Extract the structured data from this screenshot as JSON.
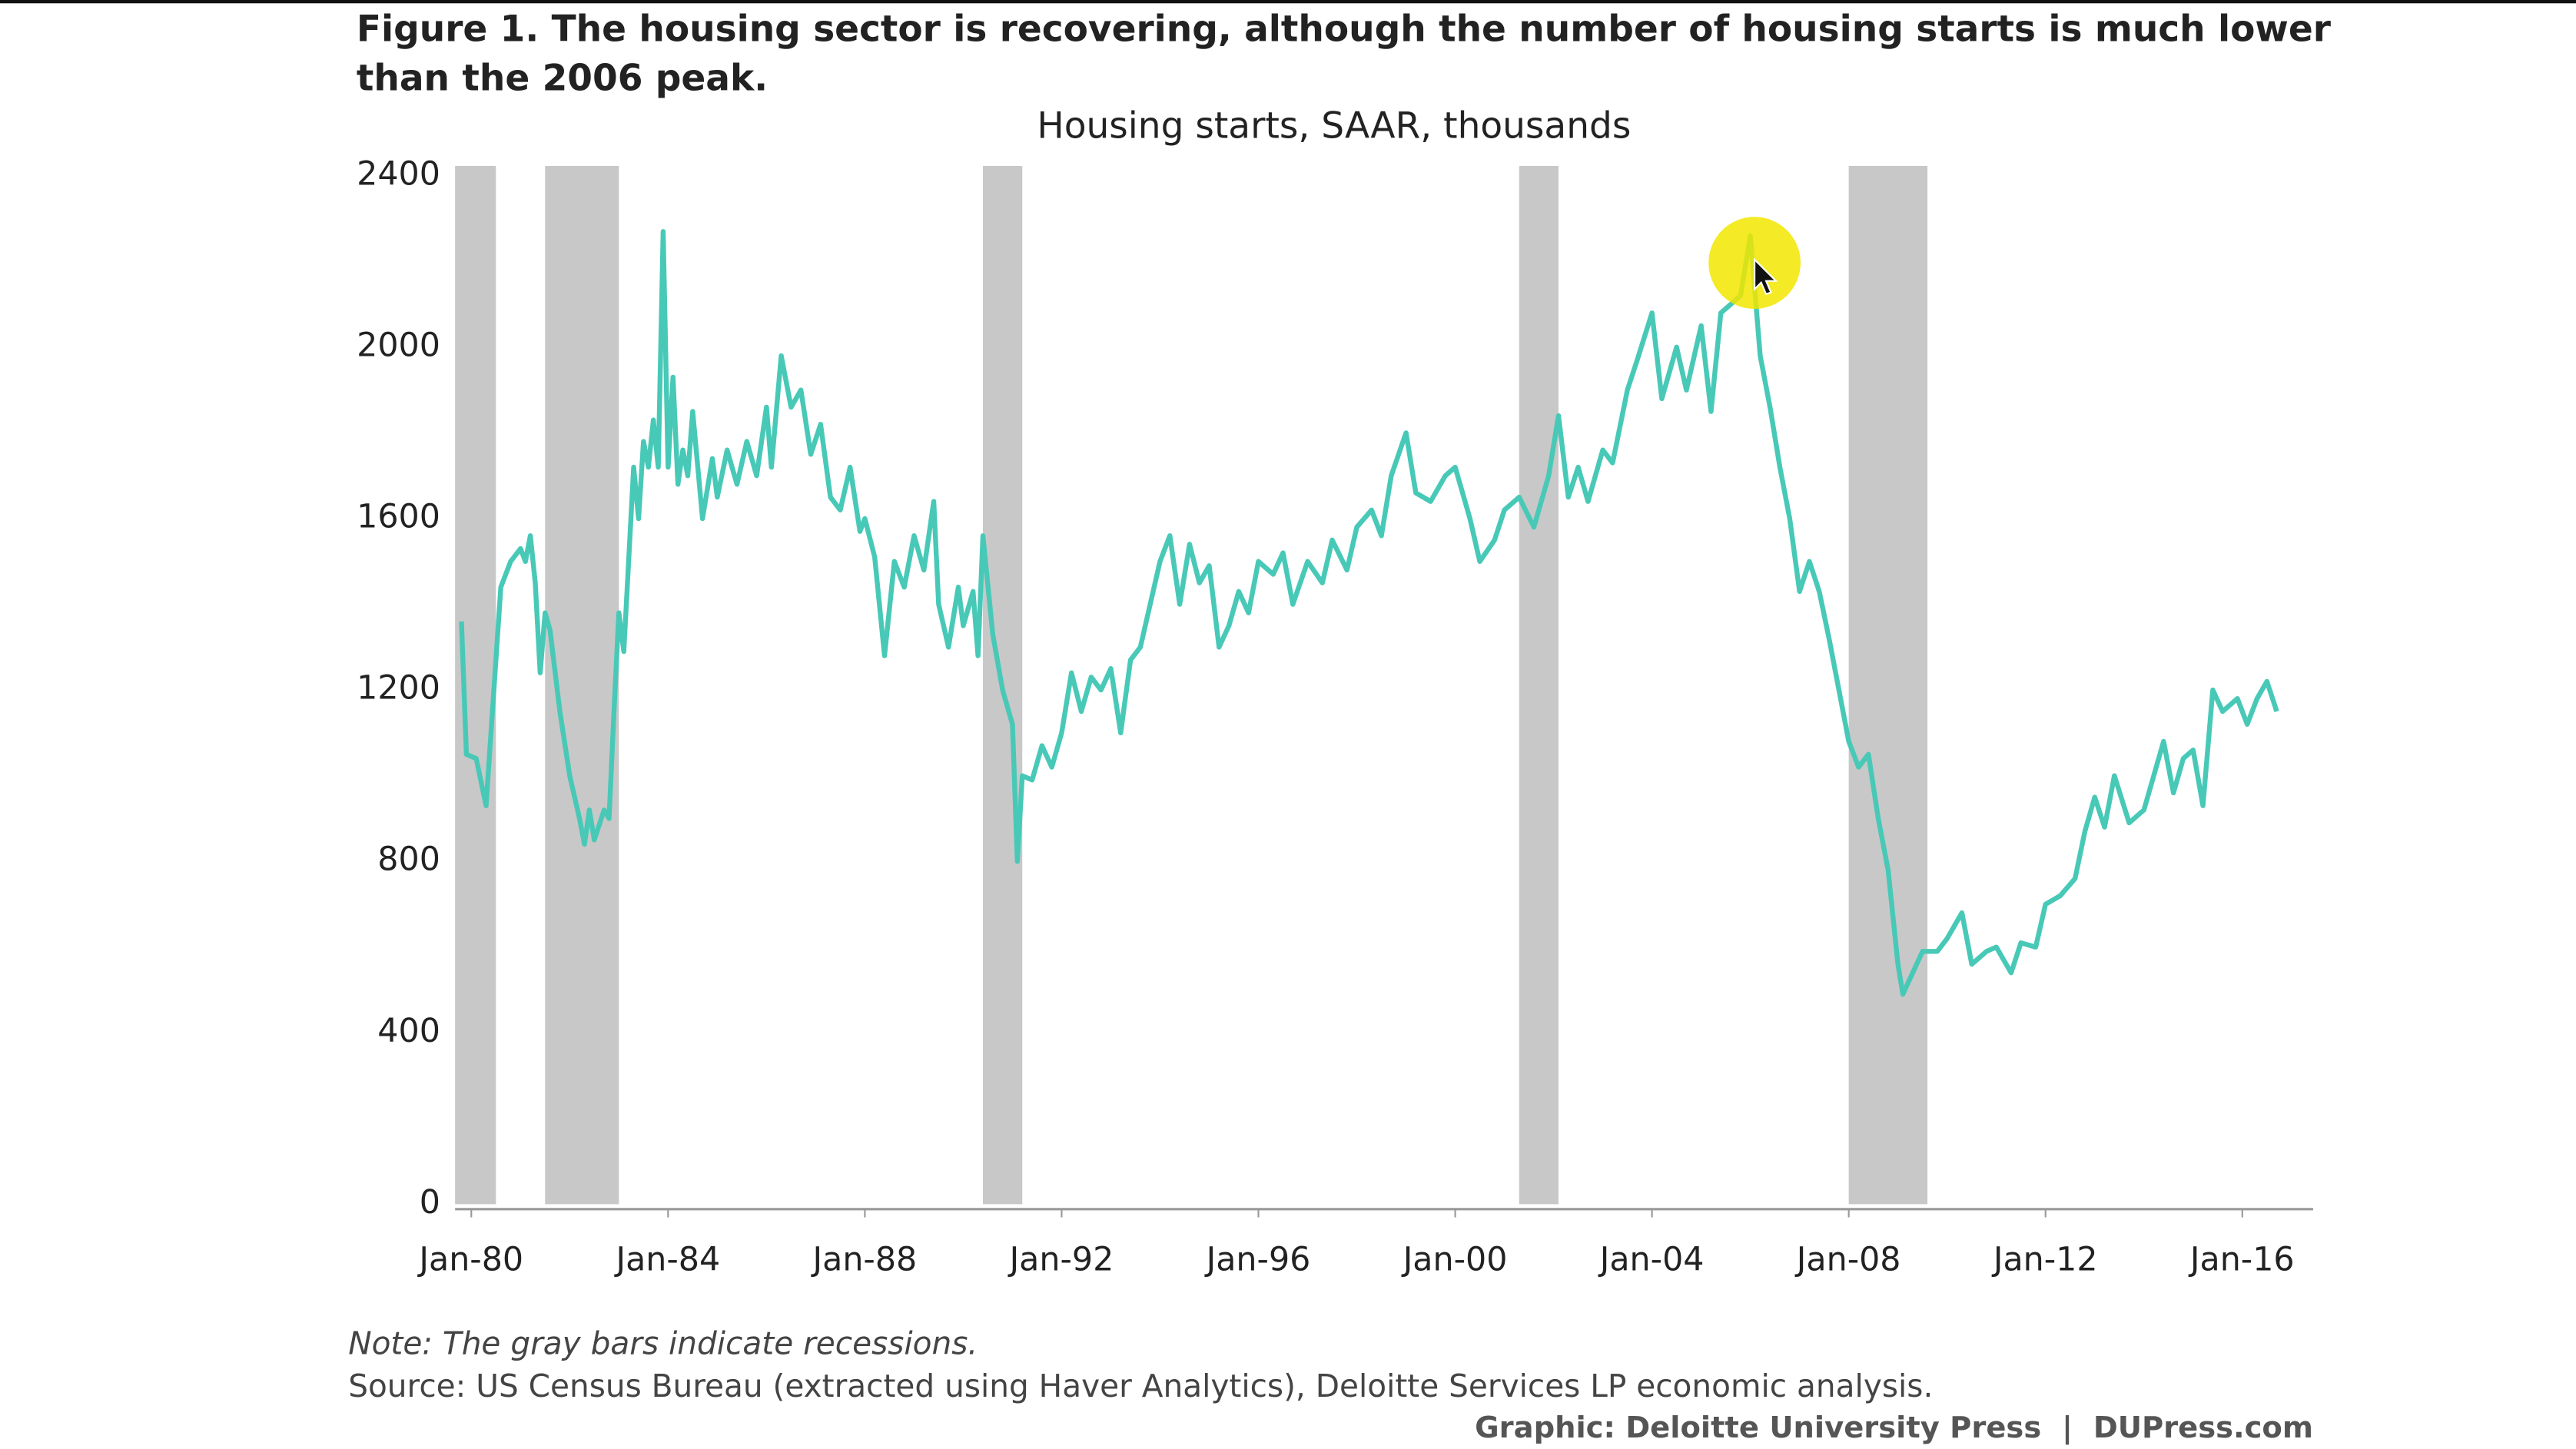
{
  "chart_data": {
    "type": "line",
    "title": [
      "Figure 1. The housing sector is recovering, although the number of housing starts is much lower",
      "than the 2006 peak."
    ],
    "subtitle": "Housing starts, SAAR, thousands",
    "note": "Note: The gray bars indicate recessions.",
    "source": "Source: US Census Bureau (extracted using Haver Analytics), Deloitte Services LP economic analysis.",
    "credit": "Graphic: Deloitte University Press  |  DUPress.com",
    "xlim": [
      1979.67,
      2017.44
    ],
    "ylim": [
      0,
      2400
    ],
    "yticks": [
      0,
      400,
      800,
      1200,
      1600,
      2000,
      2400
    ],
    "xticks": [
      {
        "value": 1980,
        "label": "Jan-80"
      },
      {
        "value": 1984,
        "label": "Jan-84"
      },
      {
        "value": 1988,
        "label": "Jan-88"
      },
      {
        "value": 1992,
        "label": "Jan-92"
      },
      {
        "value": 1996,
        "label": "Jan-96"
      },
      {
        "value": 2000,
        "label": "Jan-00"
      },
      {
        "value": 2004,
        "label": "Jan-04"
      },
      {
        "value": 2008,
        "label": "Jan-08"
      },
      {
        "value": 2012,
        "label": "Jan-12"
      },
      {
        "value": 2016,
        "label": "Jan-16"
      }
    ],
    "recessions": [
      [
        1979.67,
        1980.5
      ],
      [
        1981.5,
        1983.0
      ],
      [
        1990.4,
        1991.2
      ],
      [
        2001.3,
        2002.1
      ],
      [
        2008.0,
        2009.6
      ]
    ],
    "recession_color": "#c8c8c8",
    "color": "#48c9b7",
    "x": [
      1979.8,
      1979.9,
      1980.1,
      1980.3,
      1980.5,
      1980.6,
      1980.8,
      1981.0,
      1981.1,
      1981.2,
      1981.3,
      1981.4,
      1981.5,
      1981.6,
      1981.8,
      1982.0,
      1982.2,
      1982.3,
      1982.4,
      1982.5,
      1982.7,
      1982.8,
      1982.9,
      1983.0,
      1983.1,
      1983.3,
      1983.4,
      1983.5,
      1983.6,
      1983.7,
      1983.8,
      1983.9,
      1984.0,
      1984.1,
      1984.2,
      1984.3,
      1984.4,
      1984.5,
      1984.7,
      1984.9,
      1985.0,
      1985.2,
      1985.4,
      1985.6,
      1985.8,
      1986.0,
      1986.1,
      1986.3,
      1986.5,
      1986.7,
      1986.9,
      1987.1,
      1987.3,
      1987.5,
      1987.7,
      1987.9,
      1988.0,
      1988.2,
      1988.4,
      1988.6,
      1988.8,
      1989.0,
      1989.2,
      1989.4,
      1989.5,
      1989.7,
      1989.9,
      1990.0,
      1990.2,
      1990.3,
      1990.4,
      1990.6,
      1990.8,
      1991.0,
      1991.1,
      1991.2,
      1991.4,
      1991.6,
      1991.8,
      1992.0,
      1992.2,
      1992.4,
      1992.6,
      1992.8,
      1993.0,
      1993.2,
      1993.4,
      1993.6,
      1993.8,
      1994.0,
      1994.2,
      1994.4,
      1994.6,
      1994.8,
      1995.0,
      1995.2,
      1995.4,
      1995.6,
      1995.8,
      1996.0,
      1996.3,
      1996.5,
      1996.7,
      1997.0,
      1997.3,
      1997.5,
      1997.8,
      1998.0,
      1998.3,
      1998.5,
      1998.7,
      1999.0,
      1999.2,
      1999.5,
      1999.8,
      2000.0,
      2000.3,
      2000.5,
      2000.8,
      2001.0,
      2001.3,
      2001.6,
      2001.9,
      2002.1,
      2002.3,
      2002.5,
      2002.7,
      2003.0,
      2003.2,
      2003.5,
      2003.7,
      2004.0,
      2004.2,
      2004.5,
      2004.7,
      2005.0,
      2005.2,
      2005.4,
      2005.6,
      2005.8,
      2006.0,
      2006.2,
      2006.4,
      2006.6,
      2006.8,
      2007.0,
      2007.2,
      2007.4,
      2007.6,
      2007.8,
      2008.0,
      2008.2,
      2008.4,
      2008.6,
      2008.8,
      2009.0,
      2009.1,
      2009.3,
      2009.5,
      2009.8,
      2010.0,
      2010.3,
      2010.5,
      2010.8,
      2011.0,
      2011.3,
      2011.5,
      2011.8,
      2012.0,
      2012.3,
      2012.6,
      2012.8,
      2013.0,
      2013.2,
      2013.4,
      2013.7,
      2014.0,
      2014.2,
      2014.4,
      2014.6,
      2014.8,
      2015.0,
      2015.2,
      2015.4,
      2015.6,
      2015.9,
      2016.1,
      2016.3,
      2016.5,
      2016.7
    ],
    "values": [
      1360,
      1050,
      1040,
      930,
      1270,
      1440,
      1500,
      1530,
      1500,
      1560,
      1450,
      1240,
      1380,
      1340,
      1150,
      1000,
      900,
      840,
      920,
      850,
      920,
      900,
      1150,
      1380,
      1290,
      1720,
      1600,
      1780,
      1720,
      1830,
      1720,
      2270,
      1720,
      1930,
      1680,
      1760,
      1700,
      1850,
      1600,
      1740,
      1650,
      1760,
      1680,
      1780,
      1700,
      1860,
      1720,
      1980,
      1860,
      1900,
      1750,
      1820,
      1650,
      1620,
      1720,
      1570,
      1600,
      1510,
      1280,
      1500,
      1440,
      1560,
      1480,
      1640,
      1400,
      1300,
      1440,
      1350,
      1430,
      1280,
      1560,
      1330,
      1200,
      1120,
      800,
      1000,
      990,
      1070,
      1020,
      1100,
      1240,
      1150,
      1230,
      1200,
      1250,
      1100,
      1270,
      1300,
      1400,
      1500,
      1560,
      1400,
      1540,
      1450,
      1490,
      1300,
      1350,
      1430,
      1380,
      1500,
      1470,
      1520,
      1400,
      1500,
      1450,
      1550,
      1480,
      1580,
      1620,
      1560,
      1700,
      1800,
      1660,
      1640,
      1700,
      1720,
      1600,
      1500,
      1550,
      1620,
      1650,
      1580,
      1700,
      1840,
      1650,
      1720,
      1640,
      1760,
      1730,
      1900,
      1970,
      2080,
      1880,
      2000,
      1900,
      2050,
      1850,
      2080,
      2100,
      2120,
      2260,
      1980,
      1860,
      1720,
      1600,
      1430,
      1500,
      1430,
      1320,
      1200,
      1080,
      1020,
      1050,
      900,
      780,
      560,
      490,
      540,
      590,
      590,
      620,
      680,
      560,
      590,
      600,
      540,
      610,
      600,
      700,
      720,
      760,
      870,
      950,
      880,
      1000,
      890,
      920,
      1000,
      1080,
      960,
      1040,
      1060,
      930,
      1200,
      1150,
      1180,
      1120,
      1180,
      1220,
      1150
    ]
  }
}
